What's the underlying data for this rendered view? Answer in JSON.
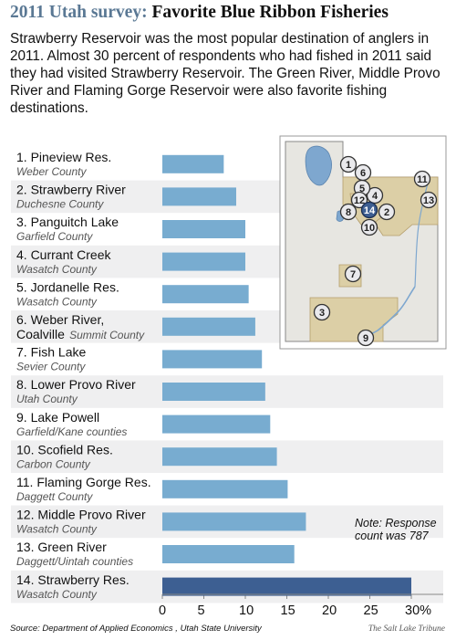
{
  "title_part1": "2011 Utah survey:",
  "title_part2": "Favorite Blue Ribbon Fisheries",
  "subtitle": "Strawberry Reservoir was the most popular destination of anglers in 2011. Almost 30 percent of respondents who had fished in 2011 said they had visited Strawberry Reservoir. The Green River, Middle Provo River and Flaming Gorge Reservoir were also favorite fishing destinations.",
  "note": "Note: Response count was 787",
  "source": "Source: Department of Applied Economics , Utah State University",
  "credit": "The Salt Lake Tribune",
  "colors": {
    "bar": "#78acd0",
    "bar_highlight": "#3d5f92",
    "stripe": "#efeff0",
    "map_county": "#dccfa6"
  },
  "chart_data": {
    "type": "bar",
    "orientation": "horizontal",
    "categories": [
      "1. Pineview Res.",
      "2. Strawberry River",
      "3. Panguitch Lake",
      "4. Currant Creek",
      "5. Jordanelle Res.",
      "6. Weber River, Coalville",
      "7. Fish Lake",
      "8. Lower Provo River",
      "9. Lake Powell",
      "10. Scofield Res.",
      "11. Flaming Gorge Res.",
      "12. Middle Provo River",
      "13. Green River",
      "14. Strawberry Res."
    ],
    "category_lines": [
      [
        "1. Pineview Res."
      ],
      [
        "2. Strawberry River"
      ],
      [
        "3. Panguitch Lake"
      ],
      [
        "4. Currant Creek"
      ],
      [
        "5. Jordanelle Res."
      ],
      [
        "6. Weber River,",
        "Coalville"
      ],
      [
        "7. Fish Lake"
      ],
      [
        "8. Lower Provo River"
      ],
      [
        "9. Lake Powell"
      ],
      [
        "10. Scofield Res."
      ],
      [
        "11. Flaming Gorge Res."
      ],
      [
        "12. Middle Provo River"
      ],
      [
        "13. Green River"
      ],
      [
        "14. Strawberry Res."
      ]
    ],
    "counties": [
      "Weber County",
      "Duchesne County",
      "Garfield County",
      "Wasatch County",
      "Wasatch County",
      "Summit County",
      "Sevier County",
      "Utah County",
      "Garfield/Kane counties",
      "Carbon County",
      "Daggett County",
      "Wasatch County",
      "Daggett/Uintah counties",
      "Wasatch County"
    ],
    "values": [
      7.4,
      8.9,
      10.0,
      10.0,
      10.4,
      11.2,
      12.0,
      12.4,
      13.0,
      13.8,
      15.1,
      17.3,
      15.9,
      30.0
    ],
    "highlight_index": 13,
    "xlim": [
      0,
      30
    ],
    "xticks": [
      "0",
      "5",
      "10",
      "15",
      "20",
      "25",
      "30%"
    ],
    "xtick_values": [
      0,
      5,
      10,
      15,
      20,
      25,
      30
    ],
    "map_markers": [
      "1",
      "2",
      "3",
      "4",
      "5",
      "6",
      "7",
      "8",
      "9",
      "10",
      "11",
      "12",
      "13",
      "14"
    ]
  }
}
